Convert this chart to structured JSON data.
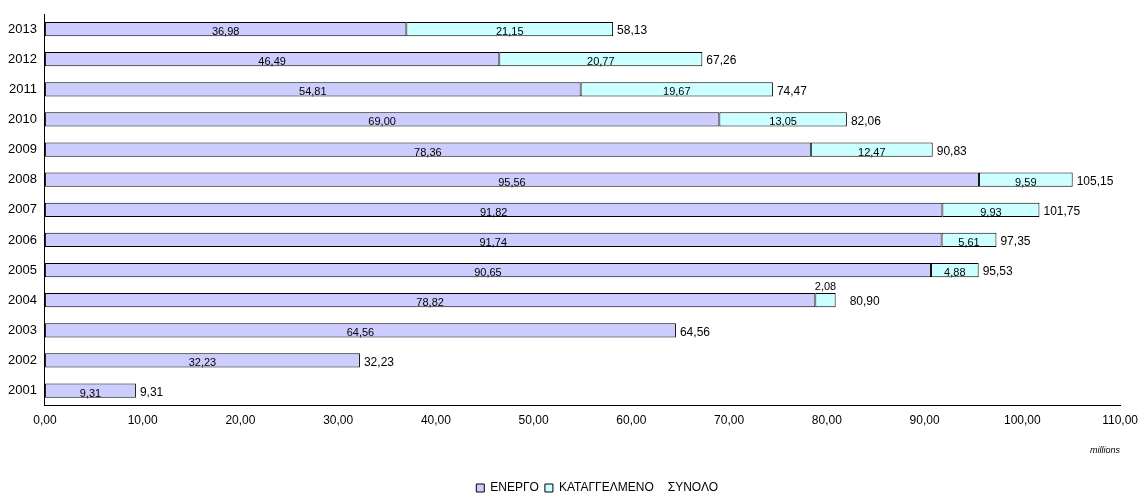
{
  "chart_data": {
    "type": "bar",
    "orientation": "horizontal",
    "stacked": true,
    "categories": [
      "2013",
      "2012",
      "2011",
      "2010",
      "2009",
      "2008",
      "2007",
      "2006",
      "2005",
      "2004",
      "2003",
      "2002",
      "2001"
    ],
    "series": [
      {
        "name": "ΕΝΕΡΓΟ",
        "color": "#ccccff",
        "values": [
          36.98,
          46.49,
          54.81,
          69.0,
          78.36,
          95.56,
          91.82,
          91.74,
          90.65,
          78.82,
          64.56,
          32.23,
          9.31
        ],
        "value_labels": [
          "36,98",
          "46,49",
          "54,81",
          "69,00",
          "78,36",
          "95,56",
          "91,82",
          "91,74",
          "90,65",
          "78,82",
          "64,56",
          "32,23",
          "9,31"
        ]
      },
      {
        "name": "ΚΑΤΑΓΓΕΛΜΕΝΟ",
        "color": "#ccffff",
        "values": [
          21.15,
          20.77,
          19.67,
          13.05,
          12.47,
          9.59,
          9.93,
          5.61,
          4.88,
          2.08,
          null,
          null,
          null
        ],
        "value_labels": [
          "21,15",
          "20,77",
          "19,67",
          "13,05",
          "12,47",
          "9,59",
          "9,93",
          "5,61",
          "4,88",
          "2,08",
          null,
          null,
          null
        ]
      }
    ],
    "totals": [
      "58,13",
      "67,26",
      "74,47",
      "82,06",
      "90,83",
      "105,15",
      "101,75",
      "97,35",
      "95,53",
      "80,90",
      "64,56",
      "32,23",
      "9,31"
    ],
    "xlim": [
      0,
      110
    ],
    "xticks": [
      {
        "value": 0,
        "label": "0,00"
      },
      {
        "value": 10,
        "label": "10,00"
      },
      {
        "value": 20,
        "label": "20,00"
      },
      {
        "value": 30,
        "label": "30,00"
      },
      {
        "value": 40,
        "label": "40,00"
      },
      {
        "value": 50,
        "label": "50,00"
      },
      {
        "value": 60,
        "label": "60,00"
      },
      {
        "value": 70,
        "label": "70,00"
      },
      {
        "value": 80,
        "label": "80,00"
      },
      {
        "value": 90,
        "label": "90,00"
      },
      {
        "value": 100,
        "label": "100,00"
      },
      {
        "value": 110,
        "label": "110,00"
      }
    ],
    "grid": false,
    "legend": "bottom",
    "annotations": [
      "ΣΥΝΟΛΟ",
      "millions"
    ]
  }
}
